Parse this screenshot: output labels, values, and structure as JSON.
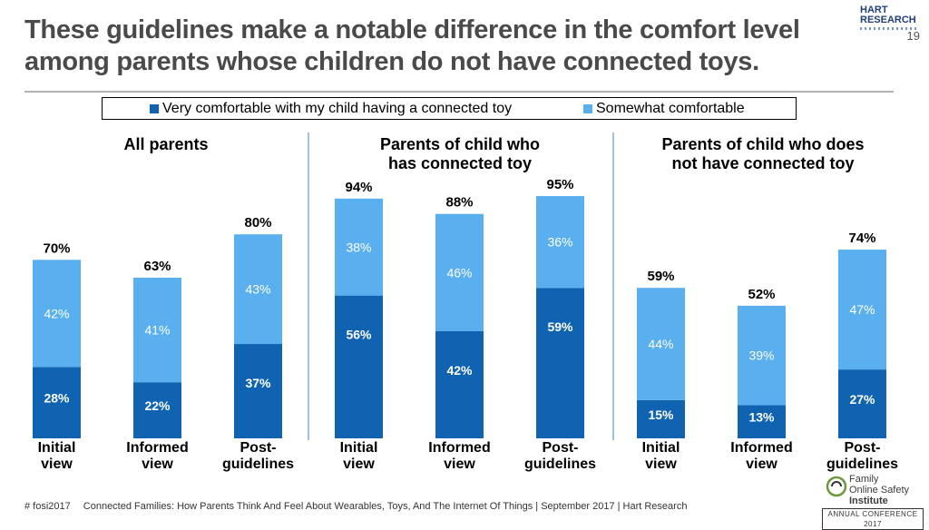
{
  "header": {
    "title_line1": "These guidelines make a notable difference in the comfort level",
    "title_line2": "among parents whose children do not have connected toys.",
    "page_number": "19",
    "logo_line1": "HART",
    "logo_line2": "RESEARCH"
  },
  "chart_data": {
    "type": "bar",
    "stacked": true,
    "legend_position": "top",
    "colors": {
      "very": "#0f63b0",
      "somewhat": "#5ab0ef"
    },
    "series": [
      {
        "name": "Very comfortable with my child having a connected toy",
        "key": "very"
      },
      {
        "name": "Somewhat comfortable",
        "key": "somewhat"
      }
    ],
    "groups": [
      {
        "title_lines": [
          "All parents"
        ],
        "bars": [
          {
            "category_lines": [
              "Initial",
              "view"
            ],
            "very": 28,
            "somewhat": 42,
            "total": 70
          },
          {
            "category_lines": [
              "Informed",
              "view"
            ],
            "very": 22,
            "somewhat": 41,
            "total": 63
          },
          {
            "category_lines": [
              "Post-",
              "guidelines"
            ],
            "very": 37,
            "somewhat": 43,
            "total": 80
          }
        ]
      },
      {
        "title_lines": [
          "Parents of child who",
          "has connected toy"
        ],
        "bars": [
          {
            "category_lines": [
              "Initial",
              "view"
            ],
            "very": 56,
            "somewhat": 38,
            "total": 94
          },
          {
            "category_lines": [
              "Informed",
              "view"
            ],
            "very": 42,
            "somewhat": 46,
            "total": 88
          },
          {
            "category_lines": [
              "Post-",
              "guidelines"
            ],
            "very": 59,
            "somewhat": 36,
            "total": 95
          }
        ]
      },
      {
        "title_lines": [
          "Parents of child who does",
          "not have connected toy"
        ],
        "bars": [
          {
            "category_lines": [
              "Initial",
              "view"
            ],
            "very": 15,
            "somewhat": 44,
            "total": 59
          },
          {
            "category_lines": [
              "Informed",
              "view"
            ],
            "very": 13,
            "somewhat": 39,
            "total": 52
          },
          {
            "category_lines": [
              "Post-",
              "guidelines"
            ],
            "very": 27,
            "somewhat": 47,
            "total": 74
          }
        ]
      }
    ]
  },
  "footer": {
    "hashtag": "# fosi2017",
    "citation": "Connected Families: How Parents Think And Feel About Wearables, Toys, And The Internet Of Things | September 2017 | Hart Research"
  },
  "fosi_logo": {
    "line1": "Family",
    "line2": "Online Safety",
    "line3": "Institute",
    "conference": "ANNUAL CONFERENCE 2017"
  }
}
